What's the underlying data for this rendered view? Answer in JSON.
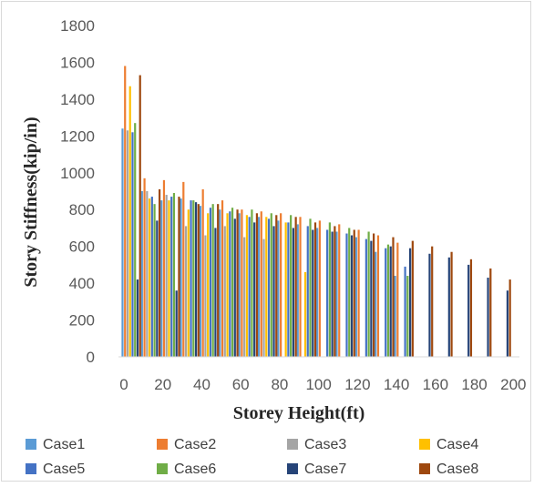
{
  "chart_data": {
    "type": "bar",
    "xlabel": "Storey Height(ft)",
    "ylabel": "Story Stiffness(kip/in)",
    "ylim": [
      0,
      1800
    ],
    "y_ticks": [
      "0",
      "200",
      "400",
      "600",
      "800",
      "1000",
      "1200",
      "1400",
      "1600",
      "1800"
    ],
    "x_ticks": [
      "0",
      "20",
      "40",
      "60",
      "80",
      "100",
      "120",
      "140",
      "160",
      "180",
      "200"
    ],
    "xlim": [
      0,
      205
    ],
    "grid": false,
    "legend_position": "bottom",
    "colors": {
      "Case1": "#5b9bd5",
      "Case2": "#ed7d31",
      "Case3": "#a5a5a5",
      "Case4": "#ffc000",
      "Case5": "#4472c4",
      "Case6": "#70ad47",
      "Case7": "#264478",
      "Case8": "#9e480e"
    },
    "series": [
      {
        "name": "Case1",
        "x": [
          10,
          20,
          30,
          40,
          50,
          60,
          70,
          80,
          90,
          100,
          110,
          120,
          130,
          140,
          150
        ],
        "values": [
          1240,
          900,
          850,
          860,
          820,
          800,
          780,
          760,
          740,
          720,
          700,
          680,
          650,
          570,
          440
        ]
      },
      {
        "name": "Case2",
        "x": [
          10,
          20,
          30,
          40,
          50,
          60,
          70,
          80,
          90,
          100,
          110,
          120,
          130,
          140,
          150
        ],
        "values": [
          1580,
          970,
          960,
          950,
          910,
          850,
          800,
          790,
          780,
          760,
          740,
          720,
          690,
          660,
          620
        ]
      },
      {
        "name": "Case3",
        "x": [
          10,
          20,
          30,
          40,
          50,
          60,
          70,
          80
        ],
        "values": [
          1230,
          900,
          880,
          710,
          660,
          710,
          650,
          640
        ]
      },
      {
        "name": "Case4",
        "x": [
          10,
          20,
          30,
          40,
          50,
          60,
          70,
          80,
          90,
          100
        ],
        "values": [
          1470,
          860,
          850,
          800,
          780,
          780,
          770,
          760,
          730,
          460
        ]
      },
      {
        "name": "Case5",
        "x": [
          10,
          20,
          30,
          40,
          50,
          60,
          70,
          80,
          90,
          100,
          110,
          120,
          130,
          140,
          150
        ],
        "values": [
          1220,
          870,
          870,
          850,
          810,
          790,
          760,
          750,
          730,
          710,
          690,
          670,
          640,
          590,
          490
        ]
      },
      {
        "name": "Case6",
        "x": [
          10,
          20,
          30,
          40,
          50,
          60,
          70,
          80,
          90,
          100,
          110,
          120,
          130,
          140,
          150
        ],
        "values": [
          1270,
          830,
          890,
          850,
          830,
          810,
          800,
          780,
          770,
          750,
          730,
          700,
          680,
          610,
          440
        ]
      },
      {
        "name": "Case7",
        "x": [
          10,
          20,
          30,
          40,
          50,
          60,
          70,
          80,
          90,
          100,
          110,
          120,
          130,
          140,
          150,
          160,
          170,
          180,
          190,
          200
        ],
        "values": [
          420,
          740,
          360,
          840,
          700,
          750,
          730,
          710,
          700,
          690,
          680,
          660,
          630,
          600,
          590,
          560,
          540,
          500,
          430,
          360
        ]
      },
      {
        "name": "Case8",
        "x": [
          10,
          20,
          30,
          40,
          50,
          60,
          70,
          80,
          90,
          100,
          110,
          120,
          130,
          140,
          150,
          160,
          170,
          180,
          190,
          200
        ],
        "values": [
          1530,
          910,
          870,
          830,
          830,
          800,
          780,
          770,
          760,
          730,
          710,
          690,
          670,
          650,
          630,
          600,
          570,
          530,
          480,
          420
        ]
      }
    ]
  }
}
